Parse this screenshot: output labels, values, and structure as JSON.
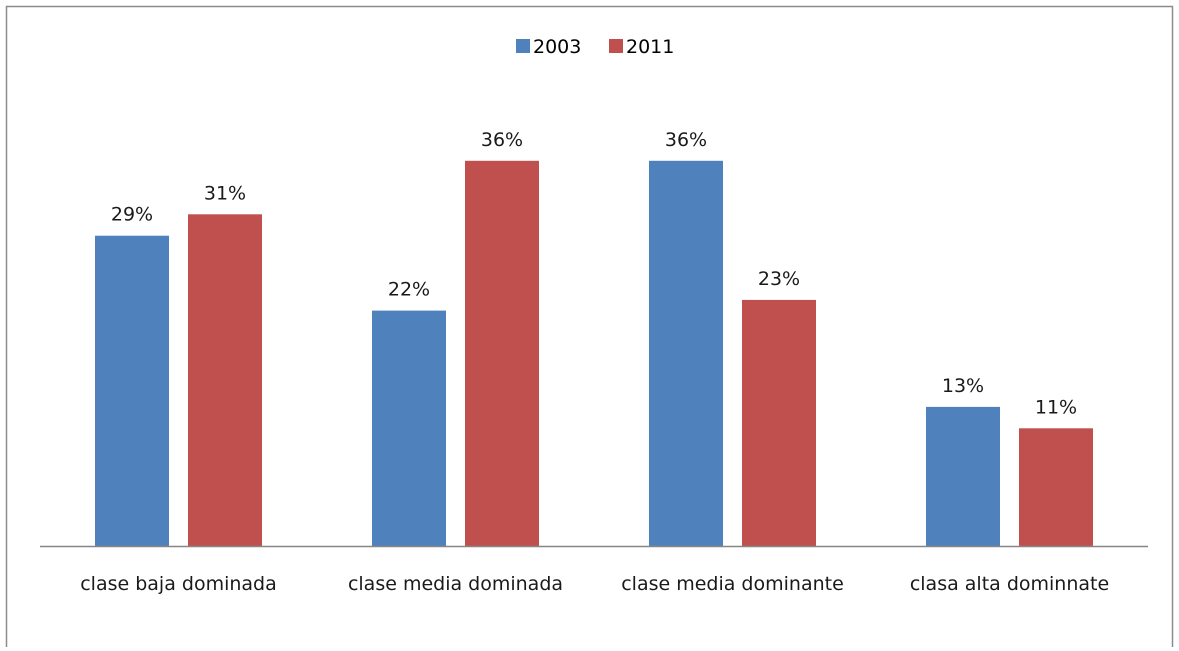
{
  "chart_data": {
    "type": "bar",
    "categories": [
      "clase baja dominada",
      "clase media dominada",
      "clase media dominante",
      "clasa alta dominnate"
    ],
    "series": [
      {
        "name": "2003",
        "values": [
          29,
          22,
          36,
          13
        ],
        "labels": [
          "29%",
          "22%",
          "36%",
          "13%"
        ],
        "color": "#4F81BD"
      },
      {
        "name": "2011",
        "values": [
          31,
          36,
          23,
          11
        ],
        "labels": [
          "31%",
          "36%",
          "23%",
          "11%"
        ],
        "color": "#C0504D"
      }
    ],
    "title": "",
    "xlabel": "",
    "ylabel": "",
    "ylim": [
      0,
      36
    ],
    "grid": false,
    "legend": "top-center",
    "border_color": "#8c8c8c",
    "axis_color": "#868686"
  }
}
